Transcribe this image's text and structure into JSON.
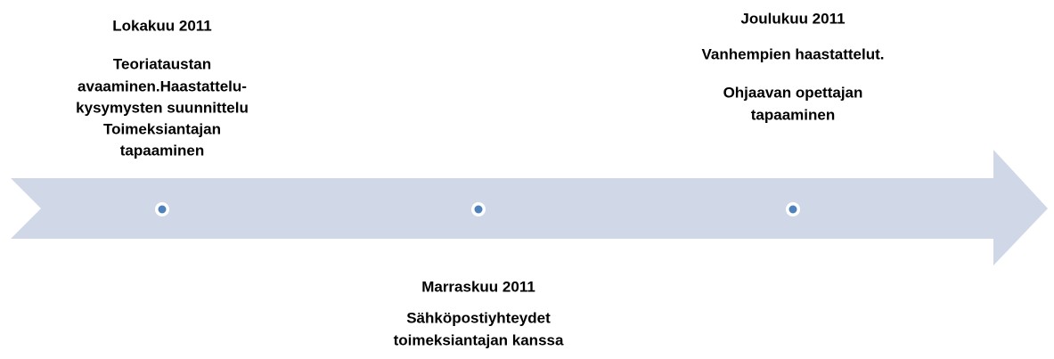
{
  "events": [
    {
      "date": "Lokakuu 2011",
      "lines": [
        "Teoriataustan",
        "avaaminen.Haastattelu-",
        "kysymysten suunnittelu",
        "Toimeksiantajan",
        "tapaaminen"
      ]
    },
    {
      "date": "Marraskuu 2011",
      "lines": [
        "Sähköpostiyhteydet",
        "toimeksiantajan kanssa"
      ]
    },
    {
      "date": "Joulukuu 2011",
      "lines": [
        "Vanhempien haastattelut.",
        "Ohjaavan opettajan",
        "tapaaminen"
      ]
    }
  ]
}
